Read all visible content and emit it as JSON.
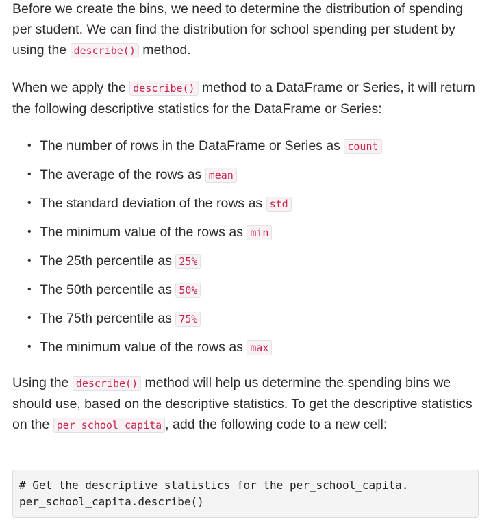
{
  "paragraphs": {
    "p1": {
      "text_a": "Before we create the bins, we need to determine the distribution of spending per student. We can find the distribution for school spending per student by using the ",
      "code": "describe()",
      "text_b": " method."
    },
    "p2": {
      "text_a": "When we apply the ",
      "code": "describe()",
      "text_b": " method to a DataFrame or Series, it will return the following descriptive statistics for the DataFrame or Series:"
    },
    "p3": {
      "text_a": "Using the ",
      "code_a": "describe()",
      "text_b": " method will help us determine the spending bins we should use, based on the descriptive statistics. To get the descriptive statistics on the ",
      "code_b": "per_school_capita",
      "text_c": ", add the following code to a new cell:"
    }
  },
  "stats_list": [
    {
      "text": "The number of rows in the DataFrame or Series as ",
      "code": "count"
    },
    {
      "text": "The average of the rows as ",
      "code": "mean"
    },
    {
      "text": "The standard deviation of the rows as ",
      "code": "std"
    },
    {
      "text": "The minimum value of the rows as ",
      "code": "min"
    },
    {
      "text": "The 25th percentile as ",
      "code": "25%"
    },
    {
      "text": "The 50th percentile as ",
      "code": "50%"
    },
    {
      "text": "The 75th percentile as ",
      "code": "75%"
    },
    {
      "text": "The minimum value of the rows as ",
      "code": "max"
    }
  ],
  "code_block": {
    "line1": "# Get the descriptive statistics for the per_school_capita.",
    "line2": "per_school_capita.describe()"
  }
}
